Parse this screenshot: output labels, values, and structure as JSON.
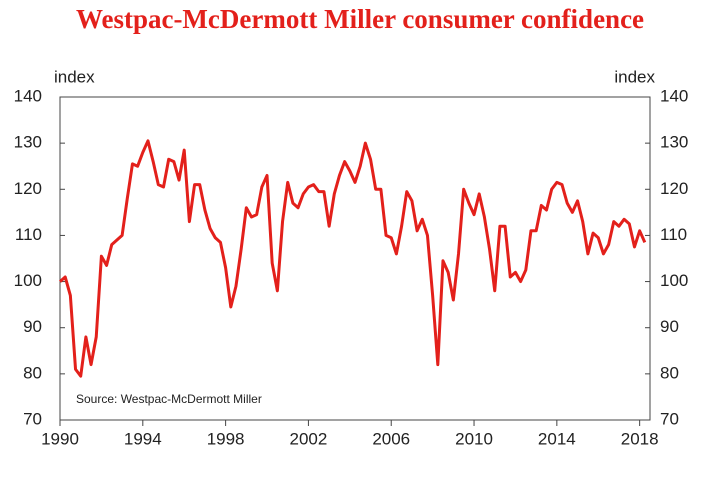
{
  "chart_data": {
    "type": "line",
    "title": "Westpac-McDermott Miller consumer confidence",
    "y_label": "index",
    "y2_label": "index",
    "annotation": "Source: Westpac-McDermott Miller",
    "color": "#e3201b",
    "x": [
      1990,
      1990.25,
      1990.5,
      1990.75,
      1991,
      1991.25,
      1991.5,
      1991.75,
      1992,
      1992.25,
      1992.5,
      1992.75,
      1993,
      1993.25,
      1993.5,
      1993.75,
      1994,
      1994.25,
      1994.5,
      1994.75,
      1995,
      1995.25,
      1995.5,
      1995.75,
      1996,
      1996.25,
      1996.5,
      1996.75,
      1997,
      1997.25,
      1997.5,
      1997.75,
      1998,
      1998.25,
      1998.5,
      1998.75,
      1999,
      1999.25,
      1999.5,
      1999.75,
      2000,
      2000.25,
      2000.5,
      2000.75,
      2001,
      2001.25,
      2001.5,
      2001.75,
      2002,
      2002.25,
      2002.5,
      2002.75,
      2003,
      2003.25,
      2003.5,
      2003.75,
      2004,
      2004.25,
      2004.5,
      2004.75,
      2005,
      2005.25,
      2005.5,
      2005.75,
      2006,
      2006.25,
      2006.5,
      2006.75,
      2007,
      2007.25,
      2007.5,
      2007.75,
      2008,
      2008.25,
      2008.5,
      2008.75,
      2009,
      2009.25,
      2009.5,
      2009.75,
      2010,
      2010.25,
      2010.5,
      2010.75,
      2011,
      2011.25,
      2011.5,
      2011.75,
      2012,
      2012.25,
      2012.5,
      2012.75,
      2013,
      2013.25,
      2013.5,
      2013.75,
      2014,
      2014.25,
      2014.5,
      2014.75,
      2015,
      2015.25,
      2015.5,
      2015.75,
      2016,
      2016.25,
      2016.5,
      2016.75,
      2017,
      2017.25,
      2017.5,
      2017.75,
      2018,
      2018.25
    ],
    "values": [
      100,
      101,
      97,
      81,
      79.5,
      88,
      82,
      88,
      105.5,
      103.5,
      108,
      109,
      110,
      118,
      125.5,
      125,
      128,
      130.5,
      126,
      121,
      120.5,
      126.5,
      126,
      122,
      128.5,
      113,
      121,
      121,
      115.5,
      111.5,
      109.5,
      108.5,
      103,
      94.5,
      99,
      107,
      116,
      114,
      114.5,
      120.5,
      123,
      104,
      98,
      113,
      121.5,
      117,
      116,
      119,
      120.5,
      121,
      119.5,
      119.5,
      112,
      119,
      123,
      126,
      124,
      121.5,
      125,
      130,
      126.5,
      120,
      120,
      110,
      109.5,
      106,
      112,
      119.5,
      117.5,
      111,
      113.5,
      110,
      97,
      82,
      104.5,
      102,
      96,
      106,
      120,
      117,
      114.5,
      119,
      114,
      107,
      98,
      112,
      112,
      101,
      102,
      100,
      102.5,
      111,
      111,
      116.5,
      115.5,
      120,
      121.5,
      121,
      117,
      115,
      117.5,
      113,
      106,
      110.5,
      109.5,
      106,
      108,
      113,
      112,
      113.5,
      112.5,
      107.5,
      111,
      108.5
    ],
    "xlim": [
      1990,
      2018.5
    ],
    "xticks": [
      1990,
      1994,
      1998,
      2002,
      2006,
      2010,
      2014,
      2018
    ],
    "ylim": [
      70,
      140
    ],
    "yticks": [
      70,
      80,
      90,
      100,
      110,
      120,
      130,
      140
    ],
    "y2lim": [
      70,
      140
    ],
    "y2ticks": [
      70,
      80,
      90,
      100,
      110,
      120,
      130,
      140
    ]
  }
}
